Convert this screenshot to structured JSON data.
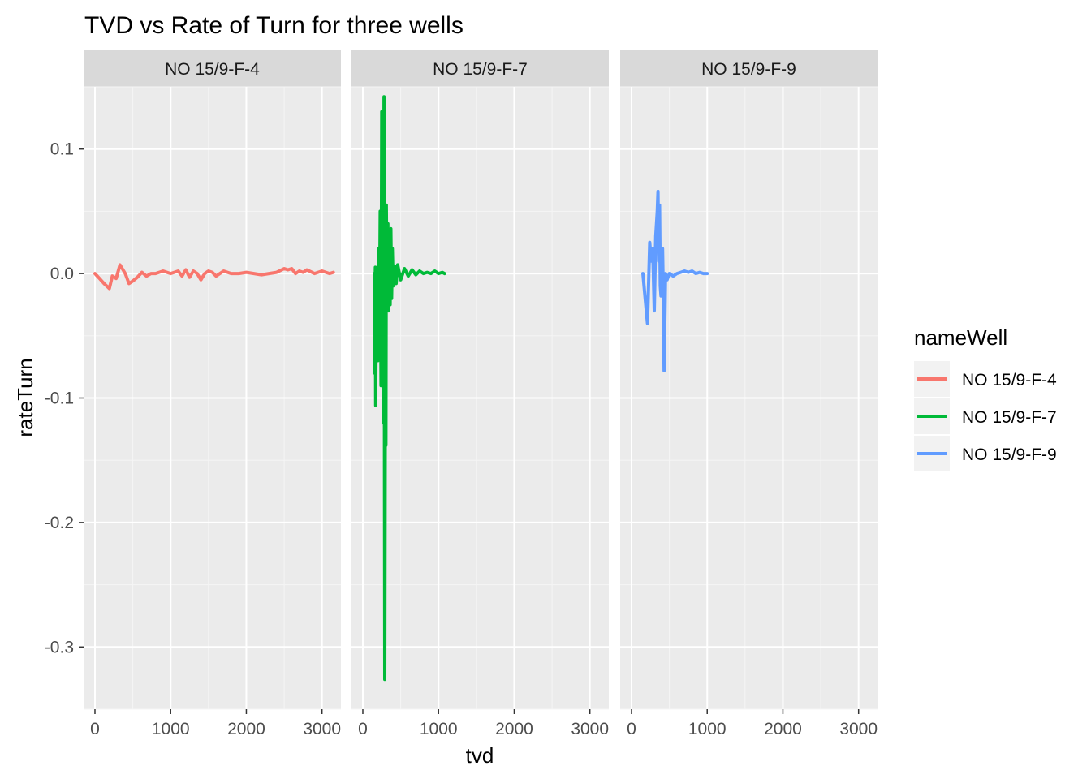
{
  "chart_data": {
    "type": "line",
    "title": "TVD vs Rate of Turn for three wells",
    "xlabel": "tvd",
    "ylabel": "rateTurn",
    "xlim": [
      -150,
      3250
    ],
    "ylim": [
      -0.35,
      0.15
    ],
    "x_ticks": [
      0,
      1000,
      2000,
      3000
    ],
    "x_tick_labels": [
      "0",
      "1000",
      "2000",
      "3000"
    ],
    "y_ticks": [
      0.1,
      0.0,
      -0.1,
      -0.2,
      -0.3
    ],
    "y_tick_labels": [
      "0.1",
      "0.0",
      "-0.1",
      "-0.2",
      "-0.3"
    ],
    "grid": true,
    "legend": {
      "title": "nameWell",
      "placement": "right"
    },
    "facets": [
      "NO 15/9-F-4",
      "NO 15/9-F-7",
      "NO 15/9-F-9"
    ],
    "series": [
      {
        "name": "NO 15/9-F-4",
        "color": "#F8766D",
        "x": [
          0,
          60,
          120,
          190,
          230,
          280,
          330,
          360,
          400,
          450,
          500,
          560,
          620,
          680,
          740,
          800,
          900,
          1000,
          1100,
          1150,
          1200,
          1250,
          1300,
          1350,
          1400,
          1450,
          1500,
          1550,
          1600,
          1700,
          1800,
          1900,
          2000,
          2100,
          2200,
          2300,
          2400,
          2500,
          2550,
          2600,
          2650,
          2700,
          2750,
          2800,
          2900,
          3000,
          3100,
          3150
        ],
        "y": [
          0.0,
          -0.004,
          -0.008,
          -0.012,
          -0.002,
          -0.004,
          0.007,
          0.004,
          0.0,
          -0.008,
          -0.006,
          -0.003,
          0.001,
          -0.002,
          0.0,
          0.0,
          0.002,
          0.0,
          0.002,
          -0.002,
          0.003,
          -0.003,
          0.002,
          0.0,
          -0.005,
          0.0,
          0.002,
          0.001,
          -0.002,
          0.002,
          0.0,
          0.0,
          0.001,
          0.0,
          -0.001,
          0.0,
          0.001,
          0.004,
          0.003,
          0.004,
          0.0,
          0.002,
          0.001,
          0.003,
          0.0,
          0.002,
          0.0,
          0.001
        ]
      },
      {
        "name": "NO 15/9-F-7",
        "color": "#00BA38",
        "x": [
          150,
          155,
          160,
          165,
          170,
          180,
          190,
          200,
          210,
          220,
          230,
          240,
          250,
          255,
          260,
          270,
          280,
          290,
          300,
          305,
          310,
          320,
          330,
          340,
          350,
          360,
          370,
          380,
          390,
          400,
          420,
          440,
          460,
          500,
          550,
          600,
          650,
          700,
          750,
          800,
          850,
          900,
          950,
          1000,
          1050,
          1080
        ],
        "y": [
          0.0,
          -0.08,
          -0.02,
          0.005,
          -0.106,
          0.0,
          -0.03,
          -0.07,
          0.02,
          -0.04,
          0.05,
          -0.09,
          0.13,
          -0.05,
          0.09,
          -0.12,
          0.142,
          -0.326,
          0.02,
          -0.138,
          0.055,
          -0.02,
          0.04,
          -0.03,
          0.025,
          -0.025,
          0.036,
          -0.02,
          0.02,
          -0.01,
          0.006,
          -0.008,
          0.007,
          -0.005,
          0.004,
          -0.002,
          0.003,
          -0.001,
          0.002,
          0.0,
          0.001,
          0.0,
          0.002,
          0.0,
          0.001,
          0.0
        ]
      },
      {
        "name": "NO 15/9-F-9",
        "color": "#619CFF",
        "x": [
          150,
          180,
          210,
          220,
          240,
          260,
          280,
          300,
          320,
          340,
          350,
          360,
          370,
          380,
          390,
          400,
          410,
          420,
          430,
          450,
          470,
          500,
          550,
          600,
          650,
          700,
          750,
          800,
          850,
          900,
          950,
          1000
        ],
        "y": [
          0.0,
          -0.02,
          -0.04,
          -0.02,
          0.025,
          0.01,
          0.02,
          -0.03,
          0.03,
          0.05,
          0.066,
          0.01,
          0.055,
          -0.01,
          -0.018,
          -0.005,
          0.02,
          -0.015,
          -0.078,
          0.0,
          -0.005,
          0.0,
          -0.002,
          0.0,
          0.001,
          0.002,
          0.001,
          0.002,
          0.0,
          0.001,
          0.0,
          0.0
        ]
      }
    ]
  }
}
